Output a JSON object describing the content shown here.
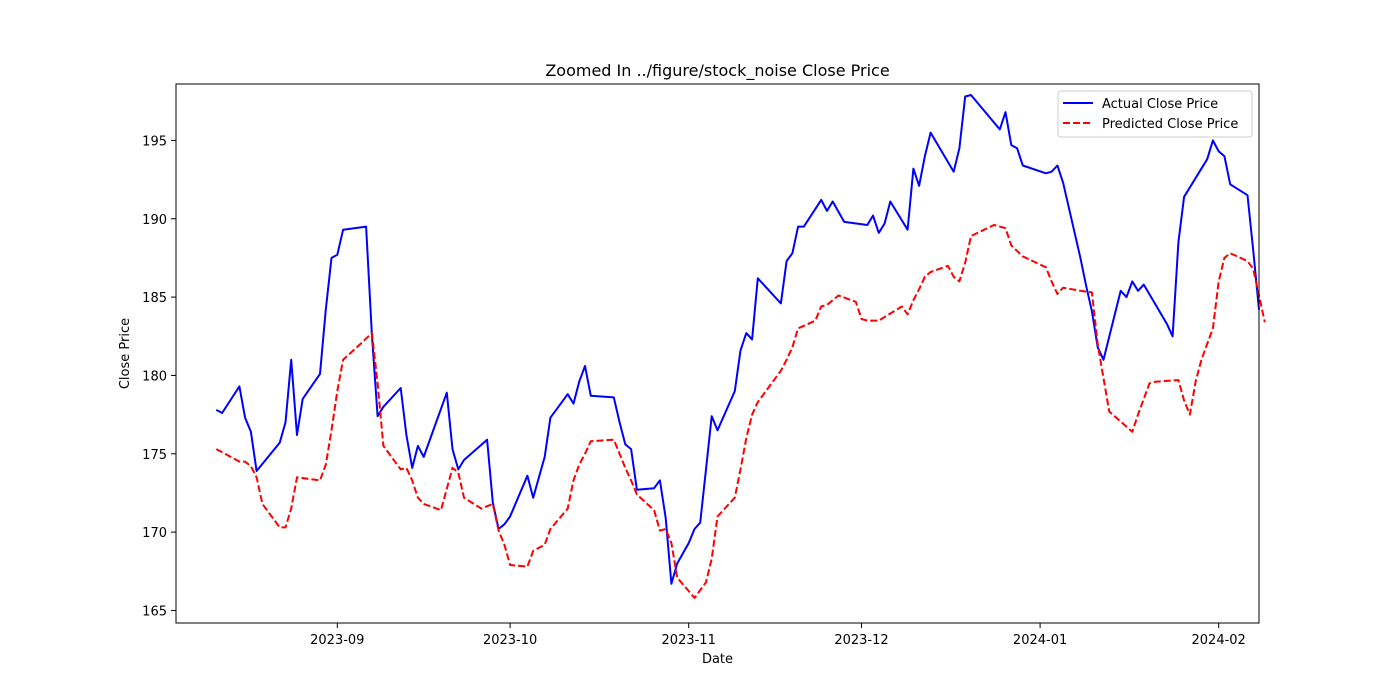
{
  "chart_data": {
    "type": "line",
    "title": "Zoomed In ../figure/stock_noise Close Price",
    "xlabel": "Date",
    "ylabel": "Close Price",
    "xlim": [
      "2023-08-04",
      "2024-02-08"
    ],
    "ylim": [
      164.2,
      198.6
    ],
    "x_ticks": [
      "2023-09-01",
      "2023-10-01",
      "2023-11-01",
      "2023-12-01",
      "2024-01-01",
      "2024-02-01"
    ],
    "x_tick_labels": [
      "2023-09",
      "2023-10",
      "2023-11",
      "2023-12",
      "2024-01",
      "2024-02"
    ],
    "y_ticks": [
      165,
      170,
      175,
      180,
      185,
      190,
      195
    ],
    "grid": false,
    "legend_position": "top-right",
    "series": [
      {
        "name": "Actual Close Price",
        "color": "#0000ff",
        "style": "solid",
        "points": [
          [
            "2023-08-11",
            177.8
          ],
          [
            "2023-08-12",
            177.6
          ],
          [
            "2023-08-15",
            179.3
          ],
          [
            "2023-08-16",
            177.3
          ],
          [
            "2023-08-17",
            176.4
          ],
          [
            "2023-08-18",
            173.9
          ],
          [
            "2023-08-22",
            175.7
          ],
          [
            "2023-08-23",
            177.0
          ],
          [
            "2023-08-24",
            181.0
          ],
          [
            "2023-08-25",
            176.2
          ],
          [
            "2023-08-26",
            178.5
          ],
          [
            "2023-08-29",
            180.1
          ],
          [
            "2023-08-30",
            184.2
          ],
          [
            "2023-08-31",
            187.5
          ],
          [
            "2023-09-01",
            187.7
          ],
          [
            "2023-09-02",
            189.3
          ],
          [
            "2023-09-06",
            189.5
          ],
          [
            "2023-09-07",
            182.6
          ],
          [
            "2023-09-08",
            177.4
          ],
          [
            "2023-09-09",
            178.0
          ],
          [
            "2023-09-12",
            179.2
          ],
          [
            "2023-09-13",
            176.2
          ],
          [
            "2023-09-14",
            174.1
          ],
          [
            "2023-09-15",
            175.5
          ],
          [
            "2023-09-16",
            174.8
          ],
          [
            "2023-09-20",
            178.9
          ],
          [
            "2023-09-21",
            175.3
          ],
          [
            "2023-09-22",
            174.0
          ],
          [
            "2023-09-23",
            174.6
          ],
          [
            "2023-09-27",
            175.9
          ],
          [
            "2023-09-28",
            171.9
          ],
          [
            "2023-09-29",
            170.2
          ],
          [
            "2023-09-30",
            170.5
          ],
          [
            "2023-10-01",
            171.0
          ],
          [
            "2023-10-04",
            173.6
          ],
          [
            "2023-10-05",
            172.2
          ],
          [
            "2023-10-07",
            174.8
          ],
          [
            "2023-10-08",
            177.3
          ],
          [
            "2023-10-11",
            178.8
          ],
          [
            "2023-10-12",
            178.2
          ],
          [
            "2023-10-13",
            179.6
          ],
          [
            "2023-10-14",
            180.6
          ],
          [
            "2023-10-15",
            178.7
          ],
          [
            "2023-10-19",
            178.6
          ],
          [
            "2023-10-20",
            177.0
          ],
          [
            "2023-10-21",
            175.6
          ],
          [
            "2023-10-22",
            175.3
          ],
          [
            "2023-10-23",
            172.7
          ],
          [
            "2023-10-26",
            172.8
          ],
          [
            "2023-10-27",
            173.3
          ],
          [
            "2023-10-28",
            170.9
          ],
          [
            "2023-10-29",
            166.7
          ],
          [
            "2023-10-30",
            168.0
          ],
          [
            "2023-11-01",
            169.3
          ],
          [
            "2023-11-02",
            170.2
          ],
          [
            "2023-11-03",
            170.6
          ],
          [
            "2023-11-04",
            174.0
          ],
          [
            "2023-11-05",
            177.4
          ],
          [
            "2023-11-06",
            176.5
          ],
          [
            "2023-11-09",
            179.0
          ],
          [
            "2023-11-10",
            181.6
          ],
          [
            "2023-11-11",
            182.7
          ],
          [
            "2023-11-12",
            182.3
          ],
          [
            "2023-11-13",
            186.2
          ],
          [
            "2023-11-17",
            184.6
          ],
          [
            "2023-11-18",
            187.3
          ],
          [
            "2023-11-19",
            187.8
          ],
          [
            "2023-11-20",
            189.5
          ],
          [
            "2023-11-21",
            189.5
          ],
          [
            "2023-11-24",
            191.2
          ],
          [
            "2023-11-25",
            190.5
          ],
          [
            "2023-11-26",
            191.1
          ],
          [
            "2023-11-28",
            189.8
          ],
          [
            "2023-12-02",
            189.6
          ],
          [
            "2023-12-03",
            190.2
          ],
          [
            "2023-12-04",
            189.1
          ],
          [
            "2023-12-05",
            189.7
          ],
          [
            "2023-12-06",
            191.1
          ],
          [
            "2023-12-09",
            189.3
          ],
          [
            "2023-12-10",
            193.2
          ],
          [
            "2023-12-11",
            192.1
          ],
          [
            "2023-12-12",
            194.0
          ],
          [
            "2023-12-13",
            195.5
          ],
          [
            "2023-12-17",
            193.0
          ],
          [
            "2023-12-18",
            194.5
          ],
          [
            "2023-12-19",
            197.8
          ],
          [
            "2023-12-20",
            197.9
          ],
          [
            "2023-12-25",
            195.7
          ],
          [
            "2023-12-26",
            196.8
          ],
          [
            "2023-12-27",
            194.7
          ],
          [
            "2023-12-28",
            194.5
          ],
          [
            "2023-12-29",
            193.4
          ],
          [
            "2024-01-02",
            192.9
          ],
          [
            "2024-01-03",
            193.0
          ],
          [
            "2024-01-04",
            193.4
          ],
          [
            "2024-01-05",
            192.3
          ],
          [
            "2024-01-08",
            187.5
          ],
          [
            "2024-01-09",
            185.7
          ],
          [
            "2024-01-10",
            184.1
          ],
          [
            "2024-01-11",
            181.8
          ],
          [
            "2024-01-12",
            181.0
          ],
          [
            "2024-01-15",
            185.4
          ],
          [
            "2024-01-16",
            185.0
          ],
          [
            "2024-01-17",
            186.0
          ],
          [
            "2024-01-18",
            185.4
          ],
          [
            "2024-01-19",
            185.8
          ],
          [
            "2024-01-23",
            183.3
          ],
          [
            "2024-01-24",
            182.5
          ],
          [
            "2024-01-25",
            188.5
          ],
          [
            "2024-01-26",
            191.4
          ],
          [
            "2024-01-30",
            193.8
          ],
          [
            "2024-01-31",
            195.0
          ],
          [
            "2024-02-01",
            194.3
          ],
          [
            "2024-02-02",
            194.0
          ],
          [
            "2024-02-03",
            192.2
          ],
          [
            "2024-02-06",
            191.5
          ],
          [
            "2024-02-07",
            188.0
          ],
          [
            "2024-02-08",
            184.2
          ]
        ]
      },
      {
        "name": "Predicted Close Price",
        "color": "#ff0000",
        "style": "dashed",
        "points": [
          [
            "2023-08-11",
            175.3
          ],
          [
            "2023-08-12",
            175.1
          ],
          [
            "2023-08-15",
            174.5
          ],
          [
            "2023-08-16",
            174.5
          ],
          [
            "2023-08-17",
            174.2
          ],
          [
            "2023-08-18",
            173.5
          ],
          [
            "2023-08-19",
            171.8
          ],
          [
            "2023-08-22",
            170.3
          ],
          [
            "2023-08-23",
            170.3
          ],
          [
            "2023-08-24",
            171.5
          ],
          [
            "2023-08-25",
            173.5
          ],
          [
            "2023-08-29",
            173.3
          ],
          [
            "2023-08-30",
            174.3
          ],
          [
            "2023-08-31",
            176.5
          ],
          [
            "2023-09-01",
            179.0
          ],
          [
            "2023-09-02",
            181.0
          ],
          [
            "2023-09-05",
            182.0
          ],
          [
            "2023-09-07",
            182.7
          ],
          [
            "2023-09-08",
            179.5
          ],
          [
            "2023-09-09",
            175.5
          ],
          [
            "2023-09-12",
            174.0
          ],
          [
            "2023-09-13",
            174.1
          ],
          [
            "2023-09-14",
            173.3
          ],
          [
            "2023-09-15",
            172.2
          ],
          [
            "2023-09-16",
            171.8
          ],
          [
            "2023-09-19",
            171.4
          ],
          [
            "2023-09-21",
            174.1
          ],
          [
            "2023-09-22",
            173.8
          ],
          [
            "2023-09-23",
            172.2
          ],
          [
            "2023-09-26",
            171.5
          ],
          [
            "2023-09-28",
            171.8
          ],
          [
            "2023-09-29",
            170.1
          ],
          [
            "2023-09-30",
            169.2
          ],
          [
            "2023-10-01",
            167.9
          ],
          [
            "2023-10-04",
            167.8
          ],
          [
            "2023-10-05",
            168.8
          ],
          [
            "2023-10-07",
            169.2
          ],
          [
            "2023-10-08",
            170.2
          ],
          [
            "2023-10-11",
            171.5
          ],
          [
            "2023-10-12",
            173.3
          ],
          [
            "2023-10-13",
            174.3
          ],
          [
            "2023-10-14",
            175.0
          ],
          [
            "2023-10-15",
            175.8
          ],
          [
            "2023-10-19",
            175.9
          ],
          [
            "2023-10-20",
            175.0
          ],
          [
            "2023-10-21",
            174.1
          ],
          [
            "2023-10-22",
            173.3
          ],
          [
            "2023-10-23",
            172.4
          ],
          [
            "2023-10-26",
            171.4
          ],
          [
            "2023-10-27",
            170.1
          ],
          [
            "2023-10-28",
            170.2
          ],
          [
            "2023-10-29",
            169.3
          ],
          [
            "2023-10-30",
            167.1
          ],
          [
            "2023-11-02",
            165.8
          ],
          [
            "2023-11-03",
            166.3
          ],
          [
            "2023-11-04",
            166.8
          ],
          [
            "2023-11-05",
            168.3
          ],
          [
            "2023-11-06",
            171.0
          ],
          [
            "2023-11-09",
            172.2
          ],
          [
            "2023-11-10",
            174.0
          ],
          [
            "2023-11-11",
            176.0
          ],
          [
            "2023-11-12",
            177.5
          ],
          [
            "2023-11-13",
            178.3
          ],
          [
            "2023-11-17",
            180.3
          ],
          [
            "2023-11-18",
            181.0
          ],
          [
            "2023-11-19",
            181.8
          ],
          [
            "2023-11-20",
            183.0
          ],
          [
            "2023-11-23",
            183.5
          ],
          [
            "2023-11-24",
            184.4
          ],
          [
            "2023-11-25",
            184.5
          ],
          [
            "2023-11-27",
            185.1
          ],
          [
            "2023-11-30",
            184.7
          ],
          [
            "2023-12-01",
            183.6
          ],
          [
            "2023-12-02",
            183.5
          ],
          [
            "2023-12-04",
            183.5
          ],
          [
            "2023-12-08",
            184.4
          ],
          [
            "2023-12-09",
            183.9
          ],
          [
            "2023-12-10",
            184.8
          ],
          [
            "2023-12-11",
            185.5
          ],
          [
            "2023-12-12",
            186.3
          ],
          [
            "2023-12-13",
            186.6
          ],
          [
            "2023-12-16",
            187.0
          ],
          [
            "2023-12-17",
            186.3
          ],
          [
            "2023-12-18",
            186.0
          ],
          [
            "2023-12-19",
            187.2
          ],
          [
            "2023-12-20",
            188.9
          ],
          [
            "2023-12-24",
            189.6
          ],
          [
            "2023-12-26",
            189.4
          ],
          [
            "2023-12-27",
            188.3
          ],
          [
            "2023-12-29",
            187.6
          ],
          [
            "2024-01-02",
            186.9
          ],
          [
            "2024-01-03",
            186.0
          ],
          [
            "2024-01-04",
            185.2
          ],
          [
            "2024-01-05",
            185.6
          ],
          [
            "2024-01-08",
            185.4
          ],
          [
            "2024-01-10",
            185.3
          ],
          [
            "2024-01-11",
            182.0
          ],
          [
            "2024-01-13",
            177.7
          ],
          [
            "2024-01-17",
            176.4
          ],
          [
            "2024-01-18",
            177.5
          ],
          [
            "2024-01-19",
            178.5
          ],
          [
            "2024-01-20",
            179.5
          ],
          [
            "2024-01-21",
            179.6
          ],
          [
            "2024-01-25",
            179.7
          ],
          [
            "2024-01-26",
            178.4
          ],
          [
            "2024-01-27",
            177.5
          ],
          [
            "2024-01-28",
            179.6
          ],
          [
            "2024-01-29",
            181.0
          ],
          [
            "2024-01-31",
            183.0
          ],
          [
            "2024-02-01",
            186.0
          ],
          [
            "2024-02-02",
            187.5
          ],
          [
            "2024-02-03",
            187.8
          ],
          [
            "2024-02-06",
            187.3
          ],
          [
            "2024-02-07",
            186.8
          ],
          [
            "2024-02-09",
            183.4
          ]
        ]
      }
    ]
  }
}
